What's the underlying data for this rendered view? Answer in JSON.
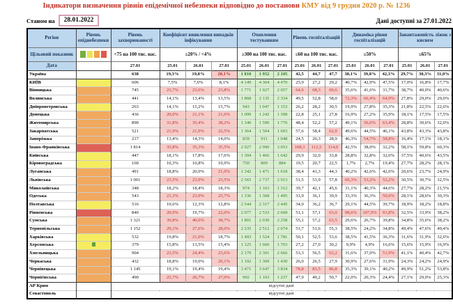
{
  "header": {
    "title_main": "Індикатори визначення рівнів епідемічної небезпеки відповідно до постанови",
    "title_ref": "КМУ від 9 грудня 2020 р. № 1236",
    "as_of_label": "Станом на",
    "as_of_date": "28.01.2022",
    "data_available": "Дані доступні за 27.01.2022"
  },
  "colors": {
    "title_main_color": "#be3026",
    "title_ref_color": "#db8b1e",
    "datebox_border": "#d5a0b5",
    "header_bg": "#bdd7ee",
    "header_text": "#17375e",
    "test_bg": "#d9efd0",
    "test_text": "#35752c",
    "red_bg": "#f8cbc8",
    "red_text": "#b02e2a",
    "level_yellow": "#f6ec60",
    "level_orange": "#f1a95f",
    "level_red": "#de6156",
    "marker_green": "#5fa13f"
  },
  "table": {
    "col_region": "Регіон",
    "col_level": "Рівень епіднебезпеки",
    "row_target_label": "Цільовий показник",
    "row_date_label": "Дата",
    "no_data_text": "відсутні дані",
    "legend_colors": [
      "#76ae3f",
      "#ede357",
      "#f0a04d",
      "#e0584c"
    ],
    "groups": [
      {
        "label": "Рівень захворюваності",
        "target": "<75 на 100 тис. нас.",
        "dates": [
          "27.01"
        ]
      },
      {
        "label": "Коефіцієнт виявлення випадків інфікування",
        "target": "≤20% / <4%",
        "dates": [
          "25.01",
          "26.01",
          "27.01"
        ]
      },
      {
        "label": "Охоплення тестуванням",
        "target": "≥300 на 100 тис. нас.",
        "dates": [
          "25.01",
          "26.01",
          "27.01"
        ]
      },
      {
        "label": "Рівень госпіталізацій",
        "target": "≤60 на 100 тис. нас.",
        "dates": [
          "25.01",
          "26.01",
          "27.01"
        ]
      },
      {
        "label": "Динаміка рівня госпіталізацій",
        "target": "≤50%",
        "dates": [
          "25.01",
          "26.01",
          "27.01"
        ]
      },
      {
        "label": "Завантаженість ліжок з киснем",
        "target": "≤65%",
        "dates": [
          "25.01",
          "26.01",
          "27.01"
        ]
      }
    ],
    "rows": [
      {
        "name": "Україна",
        "level": "none",
        "bold": true,
        "heavy_bottom": true,
        "inc": "638",
        "coef": [
          "19,3%",
          "19,8%",
          "20,1%"
        ],
        "coefR": [
          0,
          0,
          1
        ],
        "test": [
          "1 810",
          "1 952",
          "2 105"
        ],
        "hosp": [
          "42,5",
          "44,7",
          "47,7"
        ],
        "dyn": [
          "38,1%",
          "39,8%",
          "42,3%"
        ],
        "beds": [
          "29,7%",
          "30,3%",
          "31,0%"
        ]
      },
      {
        "name": "КИЇВ",
        "level": "yellow",
        "inc": "606",
        "coef": [
          "7,5%",
          "7,6%",
          "8,1%"
        ],
        "test": [
          "4 149",
          "4 364",
          "4 470"
        ],
        "hosp": [
          "25,9",
          "27,2",
          "29,2"
        ],
        "dyn": [
          "40,7%",
          "42,9%",
          "47,5%"
        ],
        "beds": [
          "17,0%",
          "16,8%",
          "17,7%"
        ]
      },
      {
        "name": "Вінницька",
        "level": "orange",
        "inc": "745",
        "coef": [
          "23,7%",
          "23,6%",
          "23,8%"
        ],
        "coefR": [
          1,
          1,
          1
        ],
        "test": [
          "1 771",
          "1 927",
          "2 057"
        ],
        "hosp": [
          "64,6",
          "68,3",
          "69,6"
        ],
        "hospR": [
          1,
          1,
          1
        ],
        "dyn": [
          "35,6%",
          "41,6%",
          "31,7%"
        ],
        "beds": [
          "38,7%",
          "40,0%",
          "40,6%"
        ]
      },
      {
        "name": "Волинська",
        "level": "orange",
        "inc": "441",
        "coef": [
          "14,1%",
          "13,4%",
          "13,5%"
        ],
        "test": [
          "1 868",
          "2 135",
          "2 334"
        ],
        "hosp": [
          "49,5",
          "52,8",
          "58,0"
        ],
        "dyn": [
          "72,3%",
          "66,4%",
          "64,9%"
        ],
        "dynR": [
          1,
          1,
          1
        ],
        "beds": [
          "27,8%",
          "29,0%",
          "29,0%"
        ]
      },
      {
        "name": "Дніпропетровська",
        "level": "yellow",
        "inc": "263",
        "coef": [
          "14,1%",
          "15,2%",
          "15,7%"
        ],
        "test": [
          "943",
          "1 047",
          "1 153"
        ],
        "hosp": [
          "26,2",
          "28,2",
          "30,5"
        ],
        "dyn": [
          "19,9%",
          "27,8%",
          "35,3%"
        ],
        "beds": [
          "21,8%",
          "22,5%",
          "22,6%"
        ]
      },
      {
        "name": "Донецька",
        "level": "orange",
        "inc": "436",
        "coef": [
          "20,0%",
          "21,1%",
          "21,6%"
        ],
        "coefR": [
          1,
          1,
          1
        ],
        "test": [
          "1 099",
          "1 242",
          "1 398"
        ],
        "hosp": [
          "22,8",
          "25,1",
          "27,8"
        ],
        "dyn": [
          "16,9%",
          "27,2%",
          "35,9%"
        ],
        "beds": [
          "18,1%",
          "17,5%",
          "17,5%"
        ]
      },
      {
        "name": "Житомирська",
        "level": "orange",
        "inc": "890",
        "coef": [
          "31,8%",
          "35,4%",
          "38,2%"
        ],
        "coefR": [
          1,
          1,
          1
        ],
        "test": [
          "1 340",
          "1 590",
          "1 776"
        ],
        "hosp": [
          "48,4",
          "52,2",
          "57,2"
        ],
        "dyn": [
          "49,1%",
          "56,6%",
          "63,4%"
        ],
        "dynR": [
          0,
          1,
          1
        ],
        "beds": [
          "28,8%",
          "30,6%",
          "32,0%"
        ]
      },
      {
        "name": "Закарпатська",
        "level": "orange",
        "inc": "521",
        "coef": [
          "21,9%",
          "21,9%",
          "22,5%"
        ],
        "coefR": [
          1,
          1,
          1
        ],
        "test": [
          "1 364",
          "1 504",
          "1 603"
        ],
        "hosp": [
          "57,6",
          "58,4",
          "62,0"
        ],
        "hospR": [
          0,
          0,
          1
        ],
        "dyn": [
          "49,6%",
          "44,5%",
          "46,1%"
        ],
        "beds": [
          "43,8%",
          "43,3%",
          "43,8%"
        ]
      },
      {
        "name": "Запорізька",
        "level": "orange",
        "inc": "217",
        "coef": [
          "13,4%",
          "14,3%",
          "14,0%"
        ],
        "test": [
          "839",
          "911",
          "1 048"
        ],
        "hosp": [
          "24,5",
          "26,3",
          "28,9"
        ],
        "dyn": [
          "46,3%",
          "54,7%",
          "58,8%"
        ],
        "dynR": [
          0,
          1,
          1
        ],
        "beds": [
          "16,4%",
          "17,1%",
          "18,1%"
        ]
      },
      {
        "name": "Івано-Франківська",
        "level": "red",
        "inc": "1 814",
        "coef": [
          "35,8%",
          "35,3%",
          "35,5%"
        ],
        "coefR": [
          1,
          1,
          1
        ],
        "test": [
          "2 927",
          "2 990",
          "3 053"
        ],
        "hosp": [
          "108,3",
          "112,5",
          "114,0"
        ],
        "hospR": [
          1,
          1,
          1
        ],
        "dyn": [
          "42,5%",
          "38,0%",
          "32,2%"
        ],
        "beds": [
          "58,1%",
          "59,8%",
          "60,3%"
        ]
      },
      {
        "name": "Київська",
        "level": "yellow",
        "inc": "447",
        "coef": [
          "18,1%",
          "17,8%",
          "17,6%"
        ],
        "test": [
          "1 304",
          "1 466",
          "1 642"
        ],
        "hosp": [
          "29,9",
          "32,0",
          "33,8"
        ],
        "dyn": [
          "28,8%",
          "32,8%",
          "32,6%"
        ],
        "beds": [
          "37,5%",
          "40,6%",
          "43,5%"
        ]
      },
      {
        "name": "Кіровоградська",
        "level": "yellow",
        "inc": "160",
        "coef": [
          "10,3%",
          "10,8%",
          "10,9%"
        ],
        "test": [
          "750",
          "809",
          "884"
        ],
        "hosp": [
          "19,5",
          "20,7",
          "22,5"
        ],
        "dyn": [
          "1,7%",
          "2,7%",
          "19,4%"
        ],
        "beds": [
          "27,7%",
          "28,2%",
          "28,1%"
        ]
      },
      {
        "name": "Луганська",
        "level": "orange",
        "inc": "491",
        "coef": [
          "18,8%",
          "20,0%",
          "21,0%"
        ],
        "coefR": [
          0,
          0,
          1
        ],
        "test": [
          "1 342",
          "1 471",
          "1 618"
        ],
        "hosp": [
          "38,4",
          "41,3",
          "44,3"
        ],
        "dyn": [
          "40,2%",
          "42,6%",
          "42,6%"
        ],
        "beds": [
          "20,6%",
          "23,7%",
          "24,9%"
        ]
      },
      {
        "name": "Львівська",
        "level": "orange",
        "inc": "1 001",
        "coef": [
          "23,5%",
          "23,9%",
          "23,5%"
        ],
        "coefR": [
          1,
          1,
          1
        ],
        "test": [
          "2 565",
          "2 737",
          "2 913"
        ],
        "hosp": [
          "51,5",
          "53,9",
          "57,8"
        ],
        "dyn": [
          "60,3%",
          "53,2%",
          "52,2%"
        ],
        "dynR": [
          1,
          1,
          1
        ],
        "beds": [
          "30,5%",
          "30,7%",
          "32,5%"
        ]
      },
      {
        "name": "Миколаївська",
        "level": "orange",
        "inc": "348",
        "coef": [
          "18,2%",
          "18,4%",
          "18,3%"
        ],
        "test": [
          "974",
          "1 163",
          "1 312"
        ],
        "hosp": [
          "39,7",
          "42,1",
          "45,6"
        ],
        "dyn": [
          "31,1%",
          "40,3%",
          "44,6%"
        ],
        "beds": [
          "27,7%",
          "28,2%",
          "21,5%"
        ]
      },
      {
        "name": "Одеська",
        "level": "orange",
        "inc": "543",
        "coef": [
          "21,3%",
          "23,9%",
          "25,7%"
        ],
        "coefR": [
          1,
          1,
          1
        ],
        "test": [
          "1 336",
          "1 368",
          "1 495"
        ],
        "hosp": [
          "33,9",
          "36,1",
          "39,9"
        ],
        "dyn": [
          "33,3%",
          "36,3%",
          "50,6%"
        ],
        "dynR": [
          0,
          0,
          1
        ],
        "beds": [
          "28,1%",
          "28,6%",
          "30,3%"
        ]
      },
      {
        "name": "Полтавська",
        "level": "yellow",
        "inc": "516",
        "coef": [
          "10,6%",
          "12,3%",
          "12,8%"
        ],
        "test": [
          "2 544",
          "2 317",
          "2 445"
        ],
        "hosp": [
          "34,0",
          "36,2",
          "36,7"
        ],
        "dyn": [
          "29,1%",
          "44,5%",
          "39,7%"
        ],
        "beds": [
          "18,9%",
          "18,2%",
          "18,8%"
        ]
      },
      {
        "name": "Рівненська",
        "level": "red",
        "inc": "840",
        "coef": [
          "20,9%",
          "19,7%",
          "22,0%"
        ],
        "coefR": [
          1,
          0,
          1
        ],
        "test": [
          "2 077",
          "2 533",
          "2 668"
        ],
        "hosp": [
          "51,1",
          "57,1",
          "63,0"
        ],
        "hospR": [
          0,
          0,
          1
        ],
        "dyn": [
          "98,6%",
          "107,9%",
          "91,8%"
        ],
        "dynR": [
          1,
          1,
          1
        ],
        "beds": [
          "32,5%",
          "33,9%",
          "38,2%"
        ]
      },
      {
        "name": "Сумська",
        "level": "orange",
        "inc": "1 321",
        "coef": [
          "39,8%",
          "40,6%",
          "38,7%"
        ],
        "coefR": [
          1,
          1,
          1
        ],
        "test": [
          "1 891",
          "2 030",
          "2 258"
        ],
        "hosp": [
          "55,1",
          "57,2",
          "63,5"
        ],
        "hospR": [
          0,
          0,
          1
        ],
        "dyn": [
          "29,6%",
          "26,7%",
          "39,8%"
        ],
        "beds": [
          "34,8%",
          "35,6%",
          "38,2%"
        ]
      },
      {
        "name": "Тернопільська",
        "level": "orange",
        "inc": "1 152",
        "coef": [
          "29,1%",
          "27,6%",
          "28,0%"
        ],
        "coefR": [
          1,
          1,
          1
        ],
        "test": [
          "2 235",
          "2 512",
          "2 674"
        ],
        "hosp": [
          "51,7",
          "51,6",
          "55,3"
        ],
        "dyn": [
          "38,5%",
          "24,2%",
          "34,8%"
        ],
        "beds": [
          "49,4%",
          "47,6%",
          "49,4%"
        ]
      },
      {
        "name": "Харківська",
        "level": "yellow",
        "inc": "532",
        "coef": [
          "19,8%",
          "21,0%",
          "18,7%"
        ],
        "coefR": [
          0,
          1,
          0
        ],
        "test": [
          "1 493",
          "1 524",
          "1 781"
        ],
        "hosp": [
          "50,1",
          "52,5",
          "53,6"
        ],
        "dyn": [
          "38,5%",
          "41,5%",
          "36,3%"
        ],
        "beds": [
          "31,6%",
          "31,9%",
          "32,6%"
        ]
      },
      {
        "name": "Херсонська",
        "level": "yellow",
        "marker": true,
        "inc": "379",
        "coef": [
          "15,8%",
          "13,5%",
          "15,4%"
        ],
        "test": [
          "1 125",
          "1 660",
          "1 763"
        ],
        "hosp": [
          "27,2",
          "27,0",
          "30,2"
        ],
        "dyn": [
          "9,9%",
          "4,9%",
          "16,6%"
        ],
        "beds": [
          "15,6%",
          "15,9%",
          "16,9%"
        ]
      },
      {
        "name": "Хмельницька",
        "level": "orange",
        "inc": "904",
        "coef": [
          "23,5%",
          "24,4%",
          "23,6%"
        ],
        "coefR": [
          1,
          1,
          1
        ],
        "test": [
          "2 179",
          "2 301",
          "2 666"
        ],
        "hosp": [
          "53,3",
          "56,5",
          "63,2"
        ],
        "hospR": [
          0,
          0,
          1
        ],
        "dyn": [
          "31,6%",
          "37,0%",
          "51,9%"
        ],
        "dynR": [
          0,
          0,
          1
        ],
        "beds": [
          "41,1%",
          "40,4%",
          "42,7%"
        ]
      },
      {
        "name": "Черкаська",
        "level": "orange",
        "inc": "432",
        "coef": [
          "18,8%",
          "19,0%",
          "20,1%"
        ],
        "coefR": [
          0,
          0,
          1
        ],
        "test": [
          "1 192",
          "1 309",
          "1 430"
        ],
        "hosp": [
          "26,0",
          "26,5",
          "27,9"
        ],
        "dyn": [
          "30,9%",
          "27,6%",
          "31,9%"
        ],
        "beds": [
          "24,3%",
          "24,2%",
          "24,9%"
        ]
      },
      {
        "name": "Чернівецька",
        "level": "orange",
        "inc": "1 145",
        "coef": [
          "19,1%",
          "19,4%",
          "19,4%"
        ],
        "test": [
          "3 471",
          "3 647",
          "3 834"
        ],
        "hosp": [
          "78,8",
          "83,5",
          "86,8"
        ],
        "hospR": [
          1,
          1,
          1
        ],
        "dyn": [
          "35,3%",
          "39,1%",
          "40,2%"
        ],
        "beds": [
          "49,9%",
          "51,2%",
          "53,8%"
        ]
      },
      {
        "name": "Чернігівська",
        "level": "orange",
        "inc": "490",
        "coef": [
          "25,7%",
          "26,7%",
          "27,0%"
        ],
        "coefR": [
          1,
          1,
          1
        ],
        "test": [
          "992",
          "1 103",
          "1 237"
        ],
        "hosp": [
          "47,9",
          "49,2",
          "50,7"
        ],
        "dyn": [
          "22,0%",
          "20,3%",
          "24,4%"
        ],
        "beds": [
          "27,1%",
          "29,0%",
          "25,3%"
        ]
      },
      {
        "name": "АР Крим",
        "no_data": true,
        "heavy_top": true
      },
      {
        "name": "Севастополь",
        "no_data": true
      }
    ]
  }
}
